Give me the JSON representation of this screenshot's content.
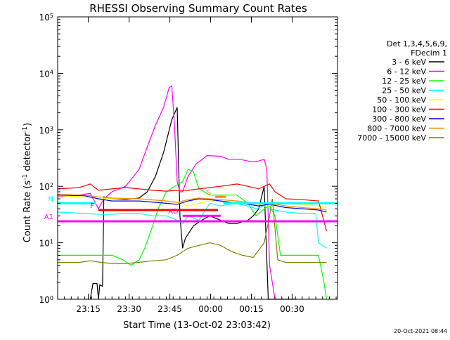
{
  "chart_data": {
    "type": "line",
    "title": "RHESSI Observing Summary Count Rates",
    "xlabel": "Start Time (13-Oct-02 23:03:42)",
    "ylabel_main": "Count Rate (s",
    "ylabel_sup1": "-1",
    "ylabel_mid": " detector",
    "ylabel_sup2": "-1",
    "ylabel_end": ")",
    "ylog": true,
    "ylim": [
      1,
      100000
    ],
    "xlim_minutes": [
      0,
      103
    ],
    "x_ticks": [
      {
        "label": "23:15",
        "minute": 11.3
      },
      {
        "label": "23:30",
        "minute": 26.3
      },
      {
        "label": "23:45",
        "minute": 41.3
      },
      {
        "label": "00:00",
        "minute": 56.3
      },
      {
        "label": "00:15",
        "minute": 71.3
      },
      {
        "label": "00:30",
        "minute": 86.3
      }
    ],
    "y_ticks": [
      {
        "mant": "10",
        "exp": "0",
        "value": 1
      },
      {
        "mant": "10",
        "exp": "1",
        "value": 10
      },
      {
        "mant": "10",
        "exp": "2",
        "value": 100
      },
      {
        "mant": "10",
        "exp": "3",
        "value": 1000
      },
      {
        "mant": "10",
        "exp": "4",
        "value": 10000
      },
      {
        "mant": "10",
        "exp": "5",
        "value": 100000
      }
    ],
    "legend_header": [
      "Det 1,3,4,5,6,9,",
      "FDecim 1"
    ],
    "legend_position": "right",
    "series": [
      {
        "name": "3 - 6 keV",
        "color": "#000000",
        "points": [
          [
            12,
            1
          ],
          [
            13,
            1.9
          ],
          [
            14.5,
            1.9
          ],
          [
            15,
            1
          ],
          [
            15.5,
            1.8
          ],
          [
            16.5,
            1.7
          ],
          [
            17,
            65
          ],
          [
            20,
            60
          ],
          [
            25,
            58
          ],
          [
            30,
            62
          ],
          [
            33,
            80
          ],
          [
            36,
            150
          ],
          [
            39,
            400
          ],
          [
            42,
            1500
          ],
          [
            44,
            2500
          ],
          [
            45,
            30
          ],
          [
            46,
            8
          ],
          [
            47,
            12
          ],
          [
            50,
            20
          ],
          [
            53,
            25
          ],
          [
            56,
            30
          ],
          [
            60,
            25
          ],
          [
            63,
            22
          ],
          [
            66,
            22
          ],
          [
            70,
            25
          ],
          [
            72,
            30
          ],
          [
            74,
            40
          ],
          [
            76,
            100
          ],
          [
            77.5,
            1
          ],
          [
            88,
            1
          ]
        ]
      },
      {
        "name": "6 - 12 keV",
        "color": "#ff00ff",
        "points": [
          [
            0,
            65
          ],
          [
            8,
            70
          ],
          [
            12,
            75
          ],
          [
            15,
            40
          ],
          [
            17,
            60
          ],
          [
            20,
            80
          ],
          [
            25,
            100
          ],
          [
            30,
            200
          ],
          [
            33,
            500
          ],
          [
            36,
            1200
          ],
          [
            39,
            2500
          ],
          [
            41,
            5500
          ],
          [
            42,
            6000
          ],
          [
            43,
            1200
          ],
          [
            44,
            120
          ],
          [
            45,
            80
          ],
          [
            46,
            80
          ],
          [
            48,
            150
          ],
          [
            51,
            250
          ],
          [
            55,
            350
          ],
          [
            60,
            340
          ],
          [
            63,
            300
          ],
          [
            67,
            300
          ],
          [
            70,
            280
          ],
          [
            72,
            270
          ],
          [
            74,
            280
          ],
          [
            76,
            300
          ],
          [
            77,
            200
          ],
          [
            78,
            4
          ],
          [
            80,
            1
          ]
        ]
      },
      {
        "name": "12 - 25 keV",
        "color": "#00ff00",
        "points": [
          [
            0,
            6
          ],
          [
            8,
            6
          ],
          [
            12,
            6
          ],
          [
            15,
            6
          ],
          [
            20,
            6
          ],
          [
            24,
            5
          ],
          [
            27,
            4
          ],
          [
            30,
            5
          ],
          [
            32,
            8
          ],
          [
            35,
            20
          ],
          [
            37,
            40
          ],
          [
            40,
            80
          ],
          [
            43,
            100
          ],
          [
            46,
            120
          ],
          [
            48,
            200
          ],
          [
            50,
            180
          ],
          [
            52,
            90
          ],
          [
            56,
            70
          ],
          [
            60,
            70
          ],
          [
            66,
            70
          ],
          [
            70,
            50
          ],
          [
            73,
            30
          ],
          [
            76,
            40
          ],
          [
            78,
            45
          ],
          [
            80,
            30
          ],
          [
            82,
            6
          ],
          [
            85,
            6
          ],
          [
            90,
            6
          ],
          [
            96,
            6
          ],
          [
            98,
            2
          ],
          [
            99,
            1
          ]
        ]
      },
      {
        "name": "25 - 50 keV",
        "color": "#00ffff",
        "points": [
          [
            0,
            35
          ],
          [
            10,
            33
          ],
          [
            15,
            32
          ],
          [
            20,
            32
          ],
          [
            25,
            33
          ],
          [
            30,
            33
          ],
          [
            35,
            30
          ],
          [
            40,
            30
          ],
          [
            44,
            25
          ],
          [
            46,
            22
          ],
          [
            48,
            30
          ],
          [
            52,
            25
          ],
          [
            56,
            50
          ],
          [
            60,
            45
          ],
          [
            65,
            50
          ],
          [
            70,
            45
          ],
          [
            73,
            40
          ],
          [
            76,
            45
          ],
          [
            78,
            40
          ],
          [
            80,
            38
          ],
          [
            84,
            35
          ],
          [
            90,
            33
          ],
          [
            95,
            33
          ],
          [
            96,
            10
          ],
          [
            99,
            8
          ]
        ]
      },
      {
        "name": "50 - 100 keV",
        "color": "#ffff00",
        "points": [
          [
            0,
            68
          ],
          [
            10,
            65
          ],
          [
            15,
            62
          ],
          [
            20,
            60
          ],
          [
            30,
            60
          ],
          [
            40,
            55
          ],
          [
            46,
            50
          ],
          [
            48,
            45
          ],
          [
            52,
            50
          ],
          [
            56,
            55
          ],
          [
            60,
            55
          ],
          [
            66,
            53
          ],
          [
            70,
            50
          ],
          [
            73,
            50
          ],
          [
            76,
            45
          ],
          [
            78,
            45
          ],
          [
            84,
            50
          ],
          [
            90,
            48
          ],
          [
            96,
            45
          ],
          [
            99,
            42
          ]
        ]
      },
      {
        "name": "100 - 300 keV",
        "color": "#ff0000",
        "points": [
          [
            0,
            90
          ],
          [
            8,
            95
          ],
          [
            12,
            110
          ],
          [
            15,
            85
          ],
          [
            20,
            90
          ],
          [
            25,
            95
          ],
          [
            30,
            90
          ],
          [
            35,
            85
          ],
          [
            40,
            82
          ],
          [
            44,
            85
          ],
          [
            48,
            85
          ],
          [
            52,
            90
          ],
          [
            56,
            95
          ],
          [
            60,
            100
          ],
          [
            66,
            110
          ],
          [
            70,
            100
          ],
          [
            74,
            90
          ],
          [
            76,
            100
          ],
          [
            78,
            110
          ],
          [
            80,
            80
          ],
          [
            84,
            60
          ],
          [
            90,
            58
          ],
          [
            96,
            55
          ],
          [
            99,
            16
          ]
        ]
      },
      {
        "name": "300 - 800 keV",
        "color": "#0000ff",
        "points": [
          [
            0,
            70
          ],
          [
            10,
            68
          ],
          [
            15,
            60
          ],
          [
            20,
            55
          ],
          [
            30,
            55
          ],
          [
            40,
            50
          ],
          [
            44,
            48
          ],
          [
            48,
            55
          ],
          [
            52,
            60
          ],
          [
            56,
            58
          ],
          [
            60,
            55
          ],
          [
            66,
            50
          ],
          [
            70,
            48
          ],
          [
            74,
            45
          ],
          [
            78,
            48
          ],
          [
            84,
            42
          ],
          [
            90,
            40
          ],
          [
            96,
            38
          ],
          [
            99,
            35
          ]
        ]
      },
      {
        "name": "800 - 7000 keV",
        "color": "#ff8c00",
        "points": [
          [
            0,
            72
          ],
          [
            10,
            70
          ],
          [
            15,
            65
          ],
          [
            20,
            62
          ],
          [
            30,
            60
          ],
          [
            40,
            55
          ],
          [
            44,
            52
          ],
          [
            48,
            58
          ],
          [
            52,
            62
          ],
          [
            56,
            60
          ],
          [
            60,
            58
          ],
          [
            66,
            55
          ],
          [
            70,
            52
          ],
          [
            74,
            50
          ],
          [
            78,
            50
          ],
          [
            84,
            45
          ],
          [
            90,
            42
          ],
          [
            96,
            40
          ],
          [
            99,
            38
          ]
        ]
      },
      {
        "name": "7000 - 15000 keV",
        "color": "#808000",
        "points": [
          [
            0,
            4.5
          ],
          [
            8,
            4.5
          ],
          [
            12,
            4.8
          ],
          [
            16,
            4.5
          ],
          [
            20,
            4.3
          ],
          [
            25,
            4.3
          ],
          [
            30,
            4.5
          ],
          [
            35,
            4.8
          ],
          [
            40,
            5
          ],
          [
            44,
            6
          ],
          [
            48,
            8
          ],
          [
            52,
            9
          ],
          [
            56,
            10
          ],
          [
            60,
            9
          ],
          [
            64,
            7
          ],
          [
            68,
            6
          ],
          [
            72,
            5.5
          ],
          [
            76,
            10
          ],
          [
            78,
            30
          ],
          [
            79,
            60
          ],
          [
            81,
            5
          ],
          [
            84,
            4.5
          ],
          [
            90,
            4.5
          ],
          [
            96,
            4.5
          ],
          [
            99,
            4.5
          ]
        ]
      }
    ],
    "flags": [
      {
        "label": "N",
        "color": "#00ffff",
        "value": 50
      },
      {
        "label": "F",
        "color": "#ff0000",
        "value": 38
      },
      {
        "label": "AD",
        "color": "#ff00ff",
        "value": 30
      },
      {
        "label": "A1",
        "color": "#ff00ff",
        "value": 24
      },
      {
        "label": "S",
        "color": "#ff8c00",
        "value": 65
      }
    ],
    "timestamp": "20-Oct-2021 08:44"
  }
}
